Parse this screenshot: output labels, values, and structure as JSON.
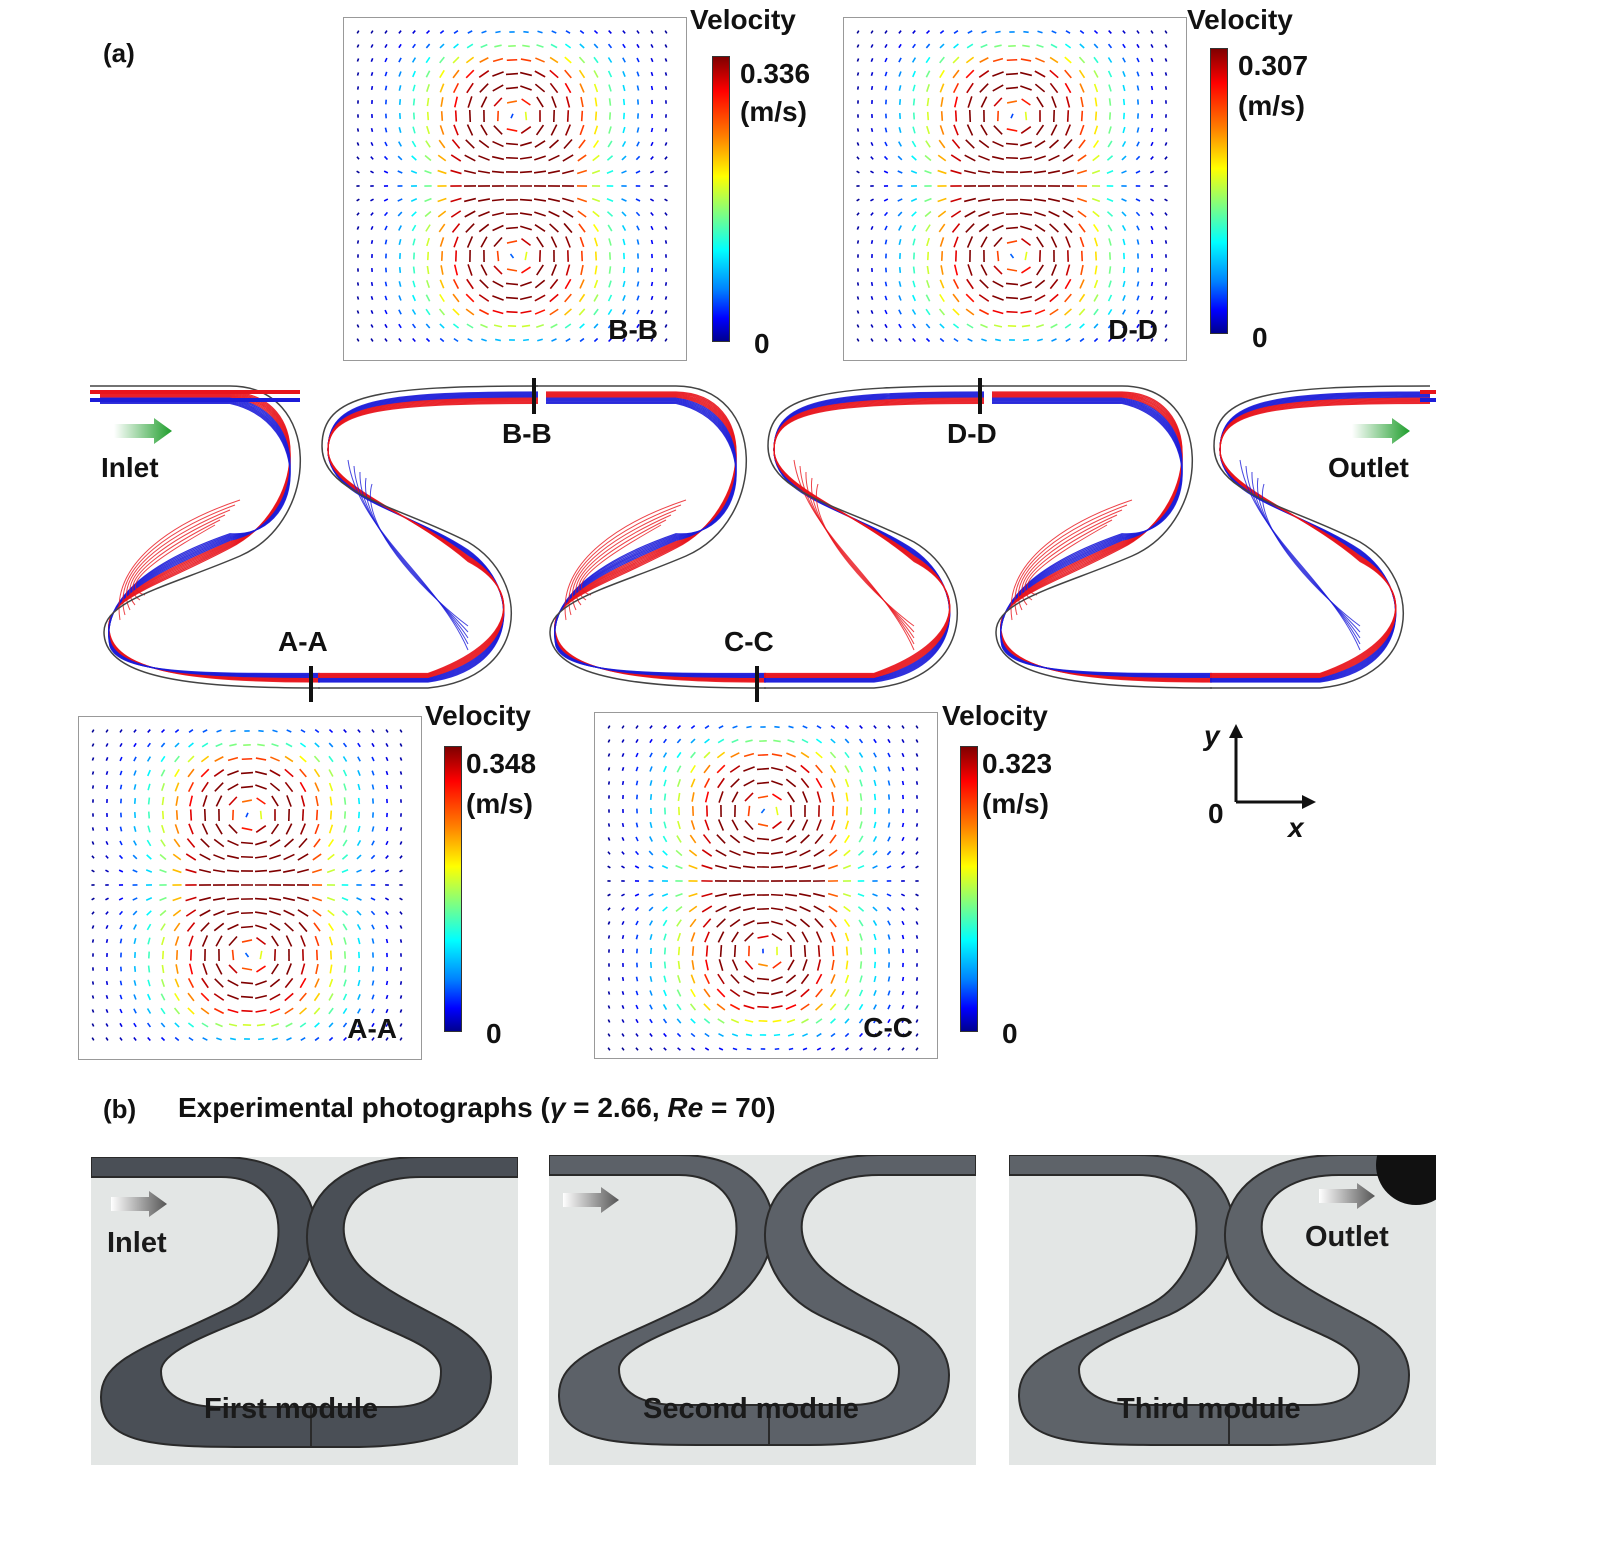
{
  "panel_a": {
    "label": "(a)",
    "sections": [
      {
        "id": "BB",
        "name": "B-B",
        "colorbar_title": "Velocity",
        "max": "0.336",
        "unit": "(m/s)",
        "min": "0"
      },
      {
        "id": "DD",
        "name": "D-D",
        "colorbar_title": "Velocity",
        "max": "0.307",
        "unit": "(m/s)",
        "min": "0"
      },
      {
        "id": "AA",
        "name": "A-A",
        "colorbar_title": "Velocity",
        "max": "0.348",
        "unit": "(m/s)",
        "min": "0"
      },
      {
        "id": "CC",
        "name": "C-C",
        "colorbar_title": "Velocity",
        "max": "0.323",
        "unit": "(m/s)",
        "min": "0"
      }
    ],
    "channel": {
      "inlet": "Inlet",
      "outlet": "Outlet",
      "cuts": [
        "B-B",
        "D-D",
        "A-A",
        "C-C"
      ]
    },
    "axes": {
      "y": "y",
      "x": "x",
      "origin": "0"
    },
    "colors": {
      "stream_red": "#e8141c",
      "stream_blue": "#1c1cd8",
      "wall": "#444444"
    }
  },
  "panel_b": {
    "label": "(b)",
    "title_prefix": "Experimental photographs (",
    "gamma_symbol": "γ",
    "gamma_text": " = 2.66, ",
    "re_symbol": "Re",
    "re_text": " = 70)",
    "photos": [
      {
        "module": "First module",
        "arrow_label": "Inlet"
      },
      {
        "module": "Second module",
        "arrow_label": ""
      },
      {
        "module": "Third module",
        "arrow_label": "Outlet"
      }
    ]
  }
}
